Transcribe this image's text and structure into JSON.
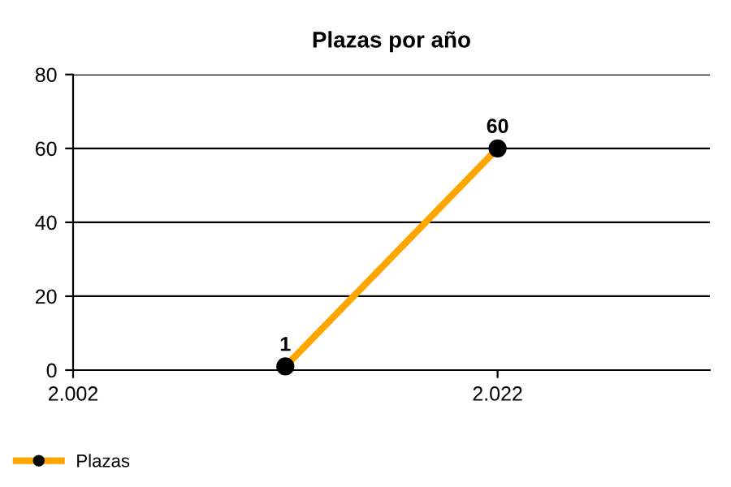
{
  "chart_data": {
    "type": "line",
    "title": "Plazas por año",
    "x": [
      2012,
      2022
    ],
    "series": [
      {
        "name": "Plazas",
        "color": "#ffa500",
        "values": [
          1,
          60
        ]
      }
    ],
    "xlim": [
      2002,
      2032
    ],
    "xticks": [
      {
        "value": 2002,
        "label": "2.002"
      },
      {
        "value": 2022,
        "label": "2.022"
      }
    ],
    "ylim": [
      0,
      80
    ],
    "yticks": [
      0,
      20,
      40,
      60,
      80
    ],
    "grid": "y",
    "legend": "bottom left",
    "marker": "circle",
    "line_style": "solid",
    "data_labels": true
  }
}
